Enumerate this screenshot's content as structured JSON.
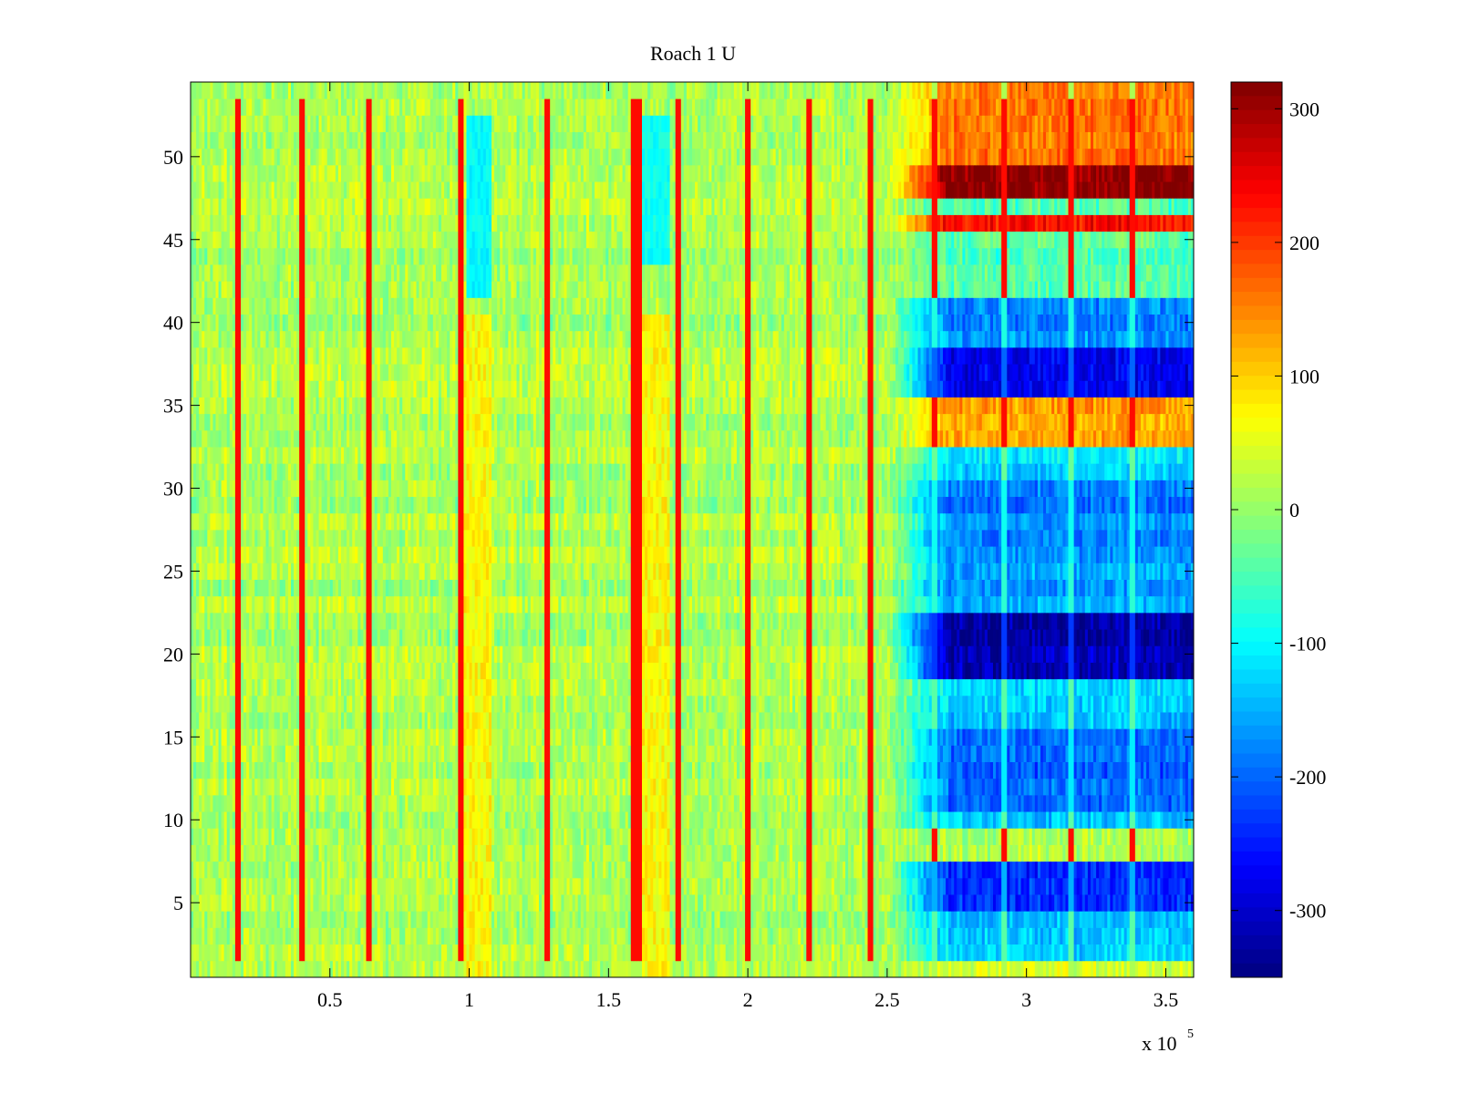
{
  "chart_data": {
    "type": "heatmap",
    "title": "Roach 1 U",
    "xlabel": "",
    "ylabel": "",
    "x_multiplier_label": "x 10",
    "x_multiplier_exponent": "5",
    "xlim": [
      0,
      3.6
    ],
    "ylim": [
      0.5,
      54.5
    ],
    "x_ticks": [
      0.5,
      1,
      1.5,
      2,
      2.5,
      3,
      3.5
    ],
    "x_tick_labels": [
      "0.5",
      "1",
      "1.5",
      "2",
      "2.5",
      "3",
      "3.5"
    ],
    "y_ticks": [
      5,
      10,
      15,
      20,
      25,
      30,
      35,
      40,
      45,
      50
    ],
    "y_tick_labels": [
      "5",
      "10",
      "15",
      "20",
      "25",
      "30",
      "35",
      "40",
      "45",
      "50"
    ],
    "rows": 54,
    "columns": 360,
    "colormap": "jet",
    "clim": [
      -350,
      320
    ],
    "colorbar_ticks": [
      300,
      200,
      100,
      0,
      -100,
      -200,
      -300
    ],
    "colorbar_tick_labels": [
      "300",
      "200",
      "100",
      "0",
      "-100",
      "-200",
      "-300"
    ],
    "spike_columns_x1e5": [
      0.17,
      0.4,
      0.64,
      0.97,
      1.28,
      1.59,
      1.61,
      1.75,
      2.0,
      2.22,
      2.44,
      2.67,
      2.92,
      3.16,
      3.38
    ],
    "background_level": 15,
    "transition_start_x1e5": 2.5,
    "transition_end_x1e5": 2.72,
    "late_row_bands": [
      {
        "rows": [
          1,
          1
        ],
        "level": 40
      },
      {
        "rows": [
          2,
          4
        ],
        "level": -130
      },
      {
        "rows": [
          5,
          7
        ],
        "level": -240
      },
      {
        "rows": [
          8,
          9
        ],
        "level": 15
      },
      {
        "rows": [
          10,
          10
        ],
        "level": -130
      },
      {
        "rows": [
          11,
          15
        ],
        "level": -200
      },
      {
        "rows": [
          16,
          18
        ],
        "level": -130
      },
      {
        "rows": [
          19,
          22
        ],
        "level": -320
      },
      {
        "rows": [
          23,
          25
        ],
        "level": -160
      },
      {
        "rows": [
          26,
          30
        ],
        "level": -180
      },
      {
        "rows": [
          31,
          32
        ],
        "level": -120
      },
      {
        "rows": [
          33,
          35
        ],
        "level": 130
      },
      {
        "rows": [
          36,
          38
        ],
        "level": -290
      },
      {
        "rows": [
          39,
          41
        ],
        "level": -170
      },
      {
        "rows": [
          42,
          45
        ],
        "level": -40
      },
      {
        "rows": [
          46,
          46
        ],
        "level": 230
      },
      {
        "rows": [
          47,
          47
        ],
        "level": -60
      },
      {
        "rows": [
          48,
          49
        ],
        "level": 310
      },
      {
        "rows": [
          50,
          54
        ],
        "level": 160
      }
    ],
    "warm_regions": [
      {
        "x": [
          0.98,
          1.08
        ],
        "rows": [
          1,
          40
        ],
        "level": 70
      },
      {
        "x": [
          1.6,
          1.72
        ],
        "rows": [
          1,
          40
        ],
        "level": 70
      }
    ],
    "cool_patches": [
      {
        "x": [
          0.99,
          1.08
        ],
        "rows": [
          42,
          52
        ],
        "level": -100
      },
      {
        "x": [
          1.61,
          1.72
        ],
        "rows": [
          44,
          52
        ],
        "level": -90
      }
    ]
  }
}
